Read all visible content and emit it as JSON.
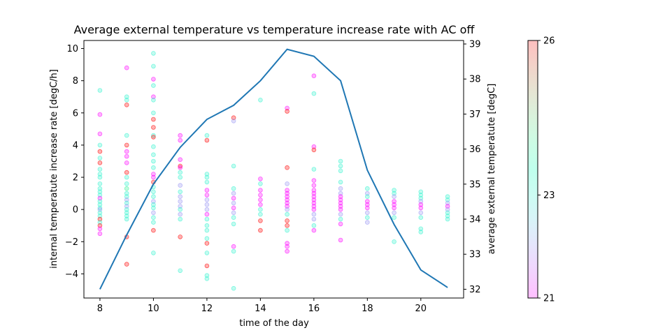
{
  "chart_data": {
    "type": "scatter",
    "title": "Average external temperature vs temperature increase rate with AC off",
    "xlabel": "time of the day",
    "ylabel": "internal temperatute increase rate [degC/h]",
    "y2label": "average external temperatute [degC]",
    "xlim": [
      7.4,
      21.6
    ],
    "ylim": [
      -5.5,
      10.5
    ],
    "y2lim": [
      31.75,
      39.1
    ],
    "xticks": [
      "8",
      "10",
      "12",
      "14",
      "16",
      "18",
      "20"
    ],
    "yticks": [
      "−4",
      "−2",
      "0",
      "2",
      "4",
      "6",
      "8",
      "10"
    ],
    "y2ticks": [
      "32",
      "33",
      "34",
      "35",
      "36",
      "37",
      "38",
      "39"
    ],
    "colorbar": {
      "range": [
        21,
        26
      ],
      "ticks": [
        "21",
        "23",
        "26"
      ],
      "colormap": "rainbow",
      "alpha": 0.25
    },
    "scatter_series": [
      {
        "x": 8,
        "points": [
          [
            7.4,
            23
          ],
          [
            5.9,
            21
          ],
          [
            4.7,
            21
          ],
          [
            4.0,
            23
          ],
          [
            3.6,
            26
          ],
          [
            3.2,
            23
          ],
          [
            2.9,
            26
          ],
          [
            2.5,
            23
          ],
          [
            2.2,
            23
          ],
          [
            2.0,
            23
          ],
          [
            1.6,
            23
          ],
          [
            1.3,
            23
          ],
          [
            1.1,
            23
          ],
          [
            0.9,
            23
          ],
          [
            0.7,
            21
          ],
          [
            0.5,
            23
          ],
          [
            0.3,
            23
          ],
          [
            0.1,
            23
          ],
          [
            0.0,
            22
          ],
          [
            -0.2,
            23
          ],
          [
            -0.4,
            23
          ],
          [
            -0.6,
            26
          ],
          [
            -0.8,
            23
          ],
          [
            -1.0,
            26
          ],
          [
            -1.2,
            21
          ],
          [
            -1.5,
            21
          ]
        ]
      },
      {
        "x": 9,
        "points": [
          [
            8.8,
            21
          ],
          [
            7.0,
            23
          ],
          [
            6.8,
            23
          ],
          [
            6.5,
            26
          ],
          [
            4.6,
            23
          ],
          [
            4.0,
            26
          ],
          [
            3.6,
            21
          ],
          [
            3.3,
            21
          ],
          [
            2.9,
            21
          ],
          [
            2.3,
            26
          ],
          [
            2.0,
            23
          ],
          [
            1.6,
            23
          ],
          [
            1.3,
            24
          ],
          [
            1.0,
            23
          ],
          [
            0.8,
            23
          ],
          [
            0.6,
            22
          ],
          [
            0.4,
            23
          ],
          [
            0.2,
            22
          ],
          [
            0.0,
            23
          ],
          [
            -0.2,
            23
          ],
          [
            -0.4,
            23
          ],
          [
            -0.6,
            23
          ],
          [
            -1.7,
            26
          ],
          [
            -3.4,
            26
          ]
        ]
      },
      {
        "x": 10,
        "points": [
          [
            9.7,
            23
          ],
          [
            8.9,
            23
          ],
          [
            8.1,
            21
          ],
          [
            7.7,
            23
          ],
          [
            7.0,
            21
          ],
          [
            6.8,
            23
          ],
          [
            6.0,
            23
          ],
          [
            5.6,
            26
          ],
          [
            5.1,
            26
          ],
          [
            4.6,
            23
          ],
          [
            4.5,
            26
          ],
          [
            3.9,
            23
          ],
          [
            3.4,
            23
          ],
          [
            3.0,
            23
          ],
          [
            2.6,
            23
          ],
          [
            2.2,
            21
          ],
          [
            2.0,
            21
          ],
          [
            1.7,
            26
          ],
          [
            1.4,
            23
          ],
          [
            1.1,
            23
          ],
          [
            0.8,
            23
          ],
          [
            0.5,
            22
          ],
          [
            0.3,
            23
          ],
          [
            0.1,
            23
          ],
          [
            -0.2,
            22
          ],
          [
            -0.5,
            23
          ],
          [
            -0.8,
            23
          ],
          [
            -1.3,
            26
          ],
          [
            -2.7,
            23
          ]
        ]
      },
      {
        "x": 11,
        "points": [
          [
            4.6,
            21
          ],
          [
            4.3,
            21
          ],
          [
            3.1,
            21
          ],
          [
            2.7,
            26
          ],
          [
            2.6,
            21
          ],
          [
            2.3,
            23
          ],
          [
            2.0,
            23
          ],
          [
            1.5,
            22
          ],
          [
            1.1,
            23
          ],
          [
            0.8,
            22
          ],
          [
            0.5,
            22
          ],
          [
            0.2,
            22
          ],
          [
            0.0,
            23
          ],
          [
            -0.3,
            22
          ],
          [
            -0.6,
            23
          ],
          [
            -1.7,
            26
          ],
          [
            -3.8,
            23
          ]
        ]
      },
      {
        "x": 12,
        "points": [
          [
            4.6,
            23
          ],
          [
            4.3,
            26
          ],
          [
            2.2,
            23
          ],
          [
            2.0,
            23
          ],
          [
            1.7,
            23
          ],
          [
            1.2,
            21
          ],
          [
            0.9,
            21
          ],
          [
            0.6,
            22
          ],
          [
            0.3,
            22
          ],
          [
            0.0,
            22
          ],
          [
            -0.3,
            21
          ],
          [
            -0.6,
            23
          ],
          [
            -1.0,
            23
          ],
          [
            -1.3,
            23
          ],
          [
            -1.8,
            23
          ],
          [
            -2.1,
            26
          ],
          [
            -2.7,
            23
          ],
          [
            -3.5,
            26
          ],
          [
            -4.1,
            23
          ],
          [
            -4.3,
            23
          ]
        ]
      },
      {
        "x": 13,
        "points": [
          [
            5.7,
            26
          ],
          [
            5.5,
            22
          ],
          [
            2.7,
            23
          ],
          [
            1.3,
            23
          ],
          [
            1.0,
            22
          ],
          [
            0.7,
            21
          ],
          [
            0.4,
            22
          ],
          [
            0.1,
            21
          ],
          [
            -0.2,
            22
          ],
          [
            -0.5,
            23
          ],
          [
            -0.9,
            23
          ],
          [
            -2.3,
            21
          ],
          [
            -2.6,
            23
          ],
          [
            -4.9,
            23
          ]
        ]
      },
      {
        "x": 14,
        "points": [
          [
            6.8,
            23
          ],
          [
            1.9,
            21
          ],
          [
            1.6,
            23
          ],
          [
            1.2,
            21
          ],
          [
            0.9,
            21
          ],
          [
            0.6,
            21
          ],
          [
            0.3,
            21
          ],
          [
            0.0,
            23
          ],
          [
            -0.3,
            23
          ],
          [
            -0.7,
            26
          ],
          [
            -1.3,
            26
          ]
        ]
      },
      {
        "x": 15,
        "points": [
          [
            6.3,
            21
          ],
          [
            6.1,
            26
          ],
          [
            2.6,
            26
          ],
          [
            1.6,
            22
          ],
          [
            1.2,
            21
          ],
          [
            1.0,
            21
          ],
          [
            0.8,
            21
          ],
          [
            0.6,
            21
          ],
          [
            0.4,
            21
          ],
          [
            0.2,
            21
          ],
          [
            0.0,
            22
          ],
          [
            -0.3,
            23
          ],
          [
            -0.7,
            26
          ],
          [
            -1.0,
            26
          ],
          [
            -1.3,
            23
          ],
          [
            -2.1,
            21
          ],
          [
            -2.3,
            21
          ],
          [
            -2.6,
            21
          ]
        ]
      },
      {
        "x": 16,
        "points": [
          [
            8.3,
            21
          ],
          [
            7.2,
            23
          ],
          [
            3.9,
            21
          ],
          [
            3.7,
            26
          ],
          [
            2.5,
            23
          ],
          [
            1.8,
            21
          ],
          [
            1.5,
            21
          ],
          [
            1.2,
            21
          ],
          [
            1.0,
            21
          ],
          [
            0.8,
            21
          ],
          [
            0.6,
            21
          ],
          [
            0.4,
            21
          ],
          [
            0.2,
            21
          ],
          [
            0.0,
            21
          ],
          [
            -0.3,
            22
          ],
          [
            -0.6,
            22
          ],
          [
            -1.0,
            23
          ],
          [
            -1.3,
            21
          ]
        ]
      },
      {
        "x": 17,
        "points": [
          [
            3.0,
            23
          ],
          [
            2.7,
            23
          ],
          [
            2.4,
            23
          ],
          [
            1.7,
            23
          ],
          [
            1.3,
            22
          ],
          [
            1.0,
            22
          ],
          [
            0.8,
            21
          ],
          [
            0.6,
            21
          ],
          [
            0.4,
            21
          ],
          [
            0.2,
            21
          ],
          [
            0.0,
            21
          ],
          [
            -0.3,
            22
          ],
          [
            -0.6,
            23
          ],
          [
            -0.9,
            21
          ],
          [
            -1.9,
            21
          ]
        ]
      },
      {
        "x": 18,
        "points": [
          [
            1.3,
            23
          ],
          [
            1.0,
            22
          ],
          [
            0.8,
            23
          ],
          [
            0.5,
            21
          ],
          [
            0.3,
            21
          ],
          [
            0.1,
            21
          ],
          [
            -0.2,
            22
          ],
          [
            -0.5,
            23
          ],
          [
            -0.8,
            22
          ]
        ]
      },
      {
        "x": 19,
        "points": [
          [
            1.2,
            23
          ],
          [
            1.0,
            23
          ],
          [
            0.8,
            22
          ],
          [
            0.5,
            21
          ],
          [
            0.3,
            21
          ],
          [
            0.1,
            21
          ],
          [
            -0.2,
            22
          ],
          [
            -0.5,
            23
          ],
          [
            -2.0,
            23
          ]
        ]
      },
      {
        "x": 20,
        "points": [
          [
            1.1,
            23
          ],
          [
            0.9,
            23
          ],
          [
            0.7,
            23
          ],
          [
            0.5,
            22
          ],
          [
            0.3,
            21
          ],
          [
            0.1,
            21
          ],
          [
            -0.2,
            22
          ],
          [
            -0.5,
            23
          ],
          [
            -1.2,
            23
          ],
          [
            -1.4,
            23
          ]
        ]
      },
      {
        "x": 21,
        "points": [
          [
            0.8,
            23
          ],
          [
            0.6,
            23
          ],
          [
            0.4,
            22
          ],
          [
            0.2,
            21
          ],
          [
            0.0,
            22
          ],
          [
            -0.2,
            23
          ],
          [
            -0.4,
            23
          ],
          [
            -0.6,
            23
          ]
        ]
      }
    ],
    "line_series": {
      "axis": "y2",
      "color": "#1f77b4",
      "x": [
        8,
        9,
        10,
        11,
        12,
        13,
        14,
        15,
        16,
        17,
        18,
        19,
        20,
        21
      ],
      "values": [
        32.0,
        33.55,
        35.0,
        36.05,
        36.85,
        37.25,
        37.95,
        38.85,
        38.65,
        37.95,
        35.4,
        33.85,
        32.55,
        32.05
      ]
    }
  }
}
